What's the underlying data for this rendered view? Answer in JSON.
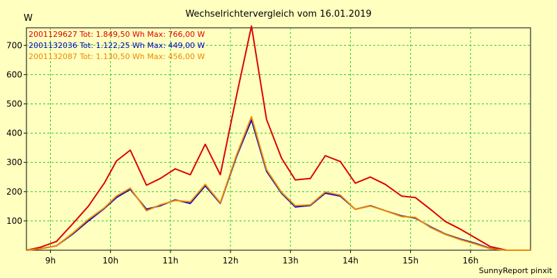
{
  "chart_data": {
    "type": "line",
    "title": "Wechselrichtervergleich vom 16.01.2019",
    "ylabel": "W",
    "xlabel": "",
    "credit": "SunnyReport pinxit",
    "grid": true,
    "ylim": [
      0,
      760
    ],
    "xlim": [
      8.6,
      17.0
    ],
    "y_ticks": [
      100,
      200,
      300,
      400,
      500,
      600,
      700
    ],
    "x_ticks": [
      {
        "value": 9,
        "label": "9h"
      },
      {
        "value": 10,
        "label": "10h"
      },
      {
        "value": 11,
        "label": "11h"
      },
      {
        "value": 12,
        "label": "12h"
      },
      {
        "value": 13,
        "label": "13h"
      },
      {
        "value": 14,
        "label": "14h"
      },
      {
        "value": 15,
        "label": "15h"
      },
      {
        "value": 16,
        "label": "16h"
      }
    ],
    "x": [
      8.6,
      8.83,
      9.1,
      9.37,
      9.63,
      9.9,
      10.1,
      10.33,
      10.6,
      10.83,
      11.08,
      11.33,
      11.58,
      11.83,
      12.1,
      12.35,
      12.6,
      12.85,
      13.08,
      13.33,
      13.58,
      13.83,
      14.08,
      14.33,
      14.58,
      14.85,
      15.08,
      15.33,
      15.58,
      15.83,
      16.1,
      16.33,
      16.6,
      17.0
    ],
    "series": [
      {
        "name": "2001129627",
        "legend": "2001129627 Tot: 1.849,50 Wh Max: 766,00 W",
        "color": "#dd0000",
        "values": [
          0,
          10,
          30,
          90,
          150,
          230,
          305,
          342,
          222,
          245,
          278,
          258,
          362,
          258,
          528,
          766,
          447,
          315,
          240,
          245,
          323,
          303,
          229,
          250,
          225,
          185,
          180,
          140,
          98,
          72,
          40,
          12,
          0,
          0
        ]
      },
      {
        "name": "2001132036",
        "legend": "2001132036 Tot: 1.122,25 Wh Max: 449,00 W",
        "color": "#0000cc",
        "values": [
          0,
          5,
          15,
          55,
          100,
          143,
          180,
          208,
          140,
          152,
          172,
          160,
          220,
          160,
          320,
          445,
          270,
          195,
          148,
          153,
          195,
          185,
          140,
          152,
          135,
          117,
          110,
          80,
          55,
          38,
          22,
          6,
          0,
          0
        ]
      },
      {
        "name": "2001132087",
        "legend": "2001132087 Tot: 1.130,50 Wh Max: 456,00 W",
        "color": "#ee8800",
        "values": [
          0,
          5,
          15,
          58,
          105,
          145,
          185,
          212,
          135,
          155,
          170,
          165,
          225,
          162,
          325,
          456,
          275,
          198,
          152,
          155,
          199,
          188,
          140,
          151,
          135,
          115,
          112,
          78,
          54,
          36,
          20,
          5,
          0,
          0
        ]
      }
    ]
  }
}
